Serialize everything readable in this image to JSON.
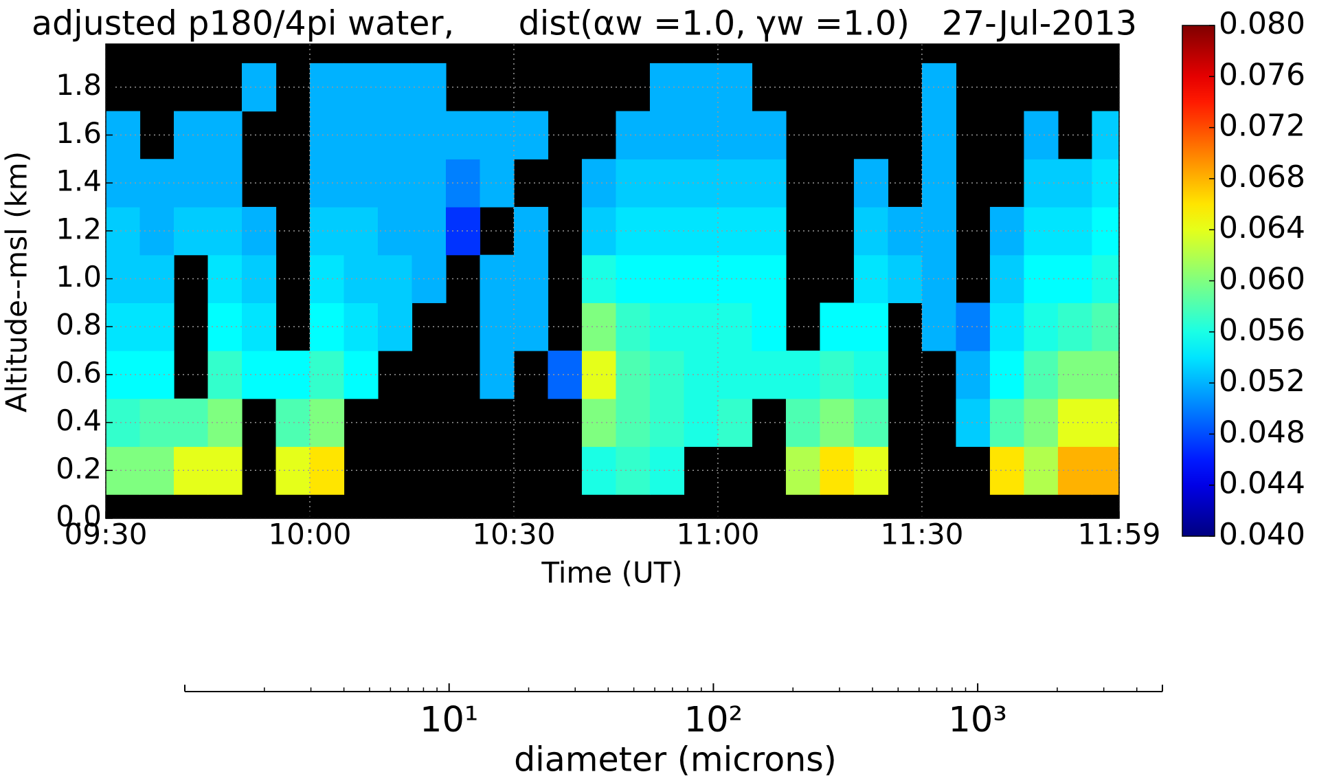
{
  "chart_data": [
    {
      "type": "heatmap",
      "title": "adjusted p180/4pi water,      dist(αw =1.0, γw =1.0)   27-Jul-2013",
      "xlabel": "Time (UT)",
      "ylabel": "Altitude--msl (km)",
      "xlim": [
        570,
        719
      ],
      "xticks": [
        {
          "value": 570,
          "label": "09:30"
        },
        {
          "value": 600,
          "label": "10:00"
        },
        {
          "value": 630,
          "label": "10:30"
        },
        {
          "value": 660,
          "label": "11:00"
        },
        {
          "value": 690,
          "label": "11:30"
        },
        {
          "value": 719,
          "label": "11:59"
        }
      ],
      "ylim": [
        0,
        1.98
      ],
      "yticks": [
        {
          "value": 0,
          "label": "0.0"
        },
        0.2,
        0.4,
        0.6,
        0.8,
        {
          "value": 1,
          "label": "1.0"
        },
        1.2,
        1.4,
        1.6,
        1.8
      ],
      "grid": true,
      "background": "#000000",
      "colormap": "jet",
      "clim": [
        0.04,
        0.08
      ],
      "colorbar_ticks": [
        {
          "value": 0.04,
          "label": "0.040"
        },
        {
          "value": 0.044,
          "label": "0.044"
        },
        {
          "value": 0.048,
          "label": "0.048"
        },
        {
          "value": 0.052,
          "label": "0.052"
        },
        {
          "value": 0.056,
          "label": "0.056"
        },
        {
          "value": 0.06,
          "label": "0.060"
        },
        {
          "value": 0.064,
          "label": "0.064"
        },
        {
          "value": 0.068,
          "label": "0.068"
        },
        {
          "value": 0.072,
          "label": "0.072"
        },
        {
          "value": 0.076,
          "label": "0.076"
        },
        {
          "value": 0.08,
          "label": "0.080"
        }
      ],
      "x_bins": [
        570,
        575,
        580,
        585,
        590,
        595,
        600,
        605,
        610,
        615,
        620,
        625,
        630,
        635,
        640,
        645,
        650,
        655,
        660,
        665,
        670,
        675,
        680,
        685,
        690,
        695,
        700,
        705,
        710,
        715,
        719
      ],
      "y_bins": [
        0.1,
        0.3,
        0.5,
        0.7,
        0.9,
        1.1,
        1.3,
        1.5,
        1.7,
        1.9
      ],
      "z": [
        [
          0.06,
          0.06,
          0.064,
          0.064,
          null,
          0.064,
          0.066,
          null,
          null,
          null,
          null,
          null,
          null,
          null,
          0.056,
          0.057,
          0.056,
          null,
          null,
          null,
          0.062,
          0.066,
          0.064,
          null,
          null,
          null,
          0.066,
          0.062,
          0.068,
          0.068
        ],
        [
          0.057,
          0.058,
          0.058,
          0.06,
          null,
          0.058,
          0.06,
          null,
          null,
          null,
          null,
          null,
          null,
          null,
          0.06,
          0.058,
          0.057,
          0.056,
          0.057,
          null,
          0.058,
          0.06,
          0.058,
          null,
          null,
          0.053,
          0.058,
          0.06,
          0.064,
          0.064
        ],
        [
          0.055,
          0.055,
          null,
          0.057,
          0.055,
          0.055,
          0.057,
          0.055,
          null,
          null,
          null,
          0.052,
          null,
          0.049,
          0.064,
          0.058,
          0.057,
          0.056,
          0.056,
          0.056,
          0.056,
          0.057,
          0.056,
          null,
          null,
          0.052,
          0.055,
          0.058,
          0.06,
          0.06
        ],
        [
          0.054,
          0.054,
          null,
          0.055,
          0.054,
          null,
          0.055,
          0.054,
          0.053,
          null,
          null,
          0.052,
          0.052,
          null,
          0.06,
          0.057,
          0.056,
          0.056,
          0.056,
          0.055,
          null,
          0.055,
          0.055,
          null,
          0.052,
          0.05,
          0.054,
          0.056,
          0.057,
          0.058
        ],
        [
          0.053,
          0.053,
          null,
          0.054,
          0.053,
          null,
          0.054,
          0.053,
          0.053,
          0.052,
          null,
          0.052,
          0.052,
          null,
          0.056,
          0.055,
          0.055,
          0.055,
          0.055,
          0.055,
          null,
          null,
          0.054,
          0.053,
          0.052,
          null,
          0.053,
          0.055,
          0.055,
          0.056
        ],
        [
          0.053,
          0.052,
          0.053,
          0.053,
          0.052,
          null,
          0.053,
          0.053,
          0.052,
          0.052,
          0.047,
          null,
          0.052,
          null,
          0.053,
          0.054,
          0.054,
          0.054,
          0.054,
          0.054,
          null,
          null,
          0.053,
          0.052,
          0.052,
          null,
          0.052,
          0.054,
          0.054,
          0.055
        ],
        [
          0.052,
          0.052,
          0.052,
          0.052,
          null,
          null,
          0.052,
          0.052,
          0.052,
          0.052,
          0.05,
          0.052,
          null,
          null,
          0.052,
          0.053,
          0.053,
          0.053,
          0.053,
          0.053,
          null,
          null,
          0.052,
          null,
          0.052,
          null,
          null,
          0.053,
          0.053,
          0.054
        ],
        [
          0.052,
          null,
          0.052,
          0.052,
          null,
          null,
          0.052,
          0.052,
          0.052,
          0.052,
          0.052,
          0.052,
          0.052,
          null,
          null,
          0.052,
          0.052,
          0.052,
          0.052,
          0.052,
          null,
          null,
          null,
          null,
          0.052,
          null,
          null,
          0.052,
          null,
          0.053
        ],
        [
          null,
          null,
          null,
          null,
          0.052,
          null,
          0.052,
          0.052,
          0.052,
          0.052,
          null,
          null,
          null,
          null,
          null,
          null,
          0.052,
          0.052,
          0.052,
          null,
          null,
          null,
          null,
          null,
          0.052,
          null,
          null,
          null,
          null,
          null
        ]
      ]
    },
    {
      "type": "line",
      "xlabel": "diameter (microns)",
      "xscale": "log",
      "xlim": [
        1,
        5000
      ],
      "xticks": [
        {
          "value": 10,
          "label": "10¹"
        },
        {
          "value": 100,
          "label": "10²"
        },
        {
          "value": 1000,
          "label": "10³"
        }
      ]
    }
  ]
}
